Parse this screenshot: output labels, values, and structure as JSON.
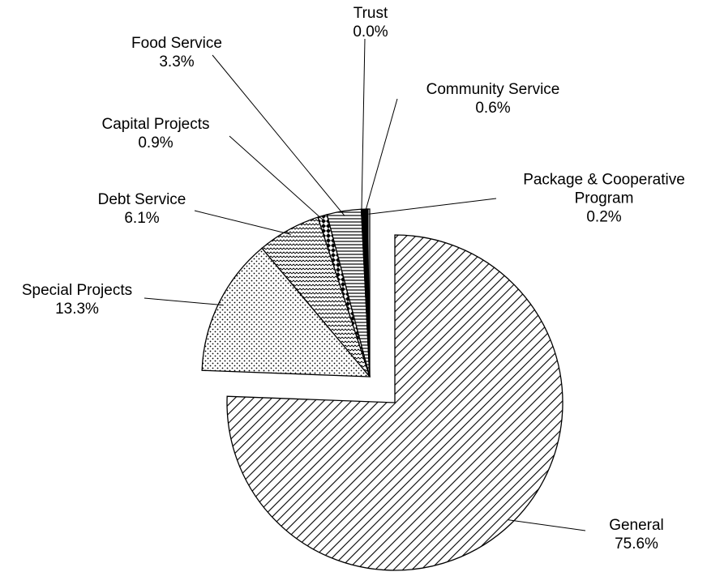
{
  "chart_data": {
    "type": "pie",
    "categories": [
      "General",
      "Special Projects",
      "Debt Service",
      "Capital Projects",
      "Food Service",
      "Trust",
      "Community Service",
      "Package & Cooperative Program"
    ],
    "values": [
      75.6,
      13.3,
      6.1,
      0.9,
      3.3,
      0.0,
      0.6,
      0.2
    ],
    "value_labels": [
      "75.6%",
      "13.3%",
      "6.1%",
      "0.9%",
      "3.3%",
      "0.0%",
      "0.6%",
      "0.2%"
    ]
  }
}
